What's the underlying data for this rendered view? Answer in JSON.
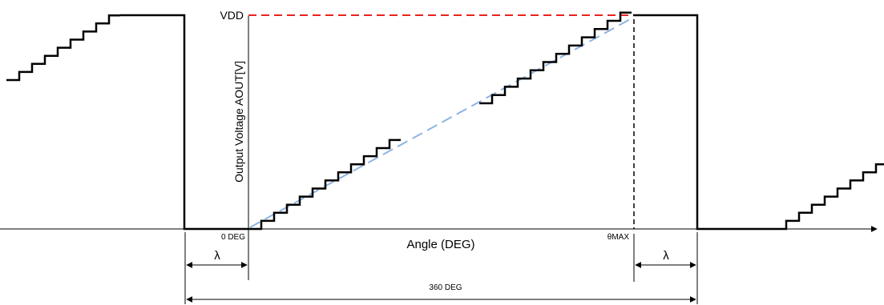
{
  "labels": {
    "vdd": "VDD",
    "y_axis": "Output Voltage AOUT[V]",
    "x_axis": "Angle (DEG)",
    "zero_deg": "0 DEG",
    "theta_max": "θMAX",
    "lambda_left": "λ",
    "lambda_right": "λ",
    "full_turn": "360 DEG"
  },
  "colors": {
    "staircase": "#000000",
    "vdd_line": "#e8231f",
    "ideal_line": "#8fb4e3",
    "axis": "#000000"
  }
}
